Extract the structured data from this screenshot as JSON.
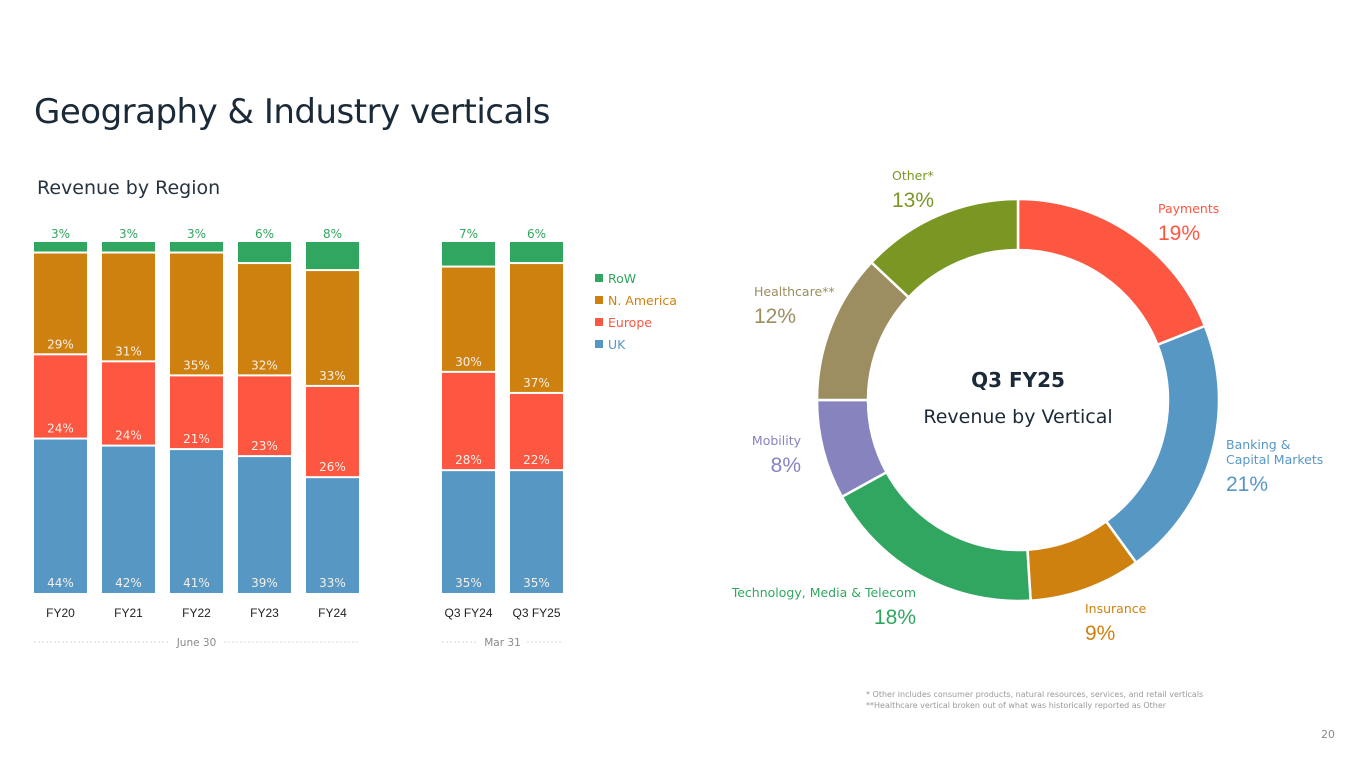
{
  "page": {
    "title": "Geography & Industry verticals",
    "page_number": "20",
    "footnotes": [
      "* Other includes consumer products, natural resources, services, and retail verticals",
      "**Healthcare vertical broken out of what was historically reported as Other"
    ]
  },
  "chart_data": [
    {
      "type": "bar",
      "stacked": true,
      "title": "Revenue by Region",
      "categories": [
        "FY20",
        "FY21",
        "FY22",
        "FY23",
        "FY24",
        "Q3 FY24",
        "Q3 FY25"
      ],
      "groups": [
        {
          "label": "June 30",
          "categories": [
            "FY20",
            "FY21",
            "FY22",
            "FY23",
            "FY24"
          ]
        },
        {
          "label": "Mar 31",
          "categories": [
            "Q3 FY24",
            "Q3 FY25"
          ]
        }
      ],
      "series": [
        {
          "name": "UK",
          "color": "#5797c4",
          "values": [
            44,
            42,
            41,
            39,
            33,
            35,
            35
          ]
        },
        {
          "name": "Europe",
          "color": "#fd5641",
          "values": [
            24,
            24,
            21,
            23,
            26,
            28,
            22
          ]
        },
        {
          "name": "N. America",
          "color": "#cf8110",
          "values": [
            29,
            31,
            35,
            32,
            33,
            30,
            37
          ]
        },
        {
          "name": "RoW",
          "color": "#31a660",
          "values": [
            3,
            3,
            3,
            6,
            8,
            7,
            6
          ]
        }
      ],
      "legend": {
        "placement": "right",
        "order": [
          "RoW",
          "N. America",
          "Europe",
          "UK"
        ]
      },
      "ylim": [
        0,
        100
      ],
      "unit": "%",
      "xlabel": "",
      "ylabel": ""
    },
    {
      "type": "pie",
      "donut": true,
      "title": "Q3 FY25",
      "subtitle": "Revenue by Vertical",
      "unit": "%",
      "slices": [
        {
          "label": "Payments",
          "value": 19,
          "color": "#fd5641"
        },
        {
          "label": "Banking & Capital Markets",
          "label_lines": [
            "Banking &",
            "Capital Markets"
          ],
          "value": 21,
          "color": "#5797c4"
        },
        {
          "label": "Insurance",
          "value": 9,
          "color": "#cf8110"
        },
        {
          "label": "Technology, Media & Telecom",
          "value": 18,
          "color": "#31a660"
        },
        {
          "label": "Mobility",
          "value": 8,
          "color": "#8783bf"
        },
        {
          "label": "Healthcare**",
          "value": 12,
          "color": "#9c8e61"
        },
        {
          "label": "Other*",
          "value": 13,
          "color": "#7a9724"
        }
      ]
    }
  ]
}
